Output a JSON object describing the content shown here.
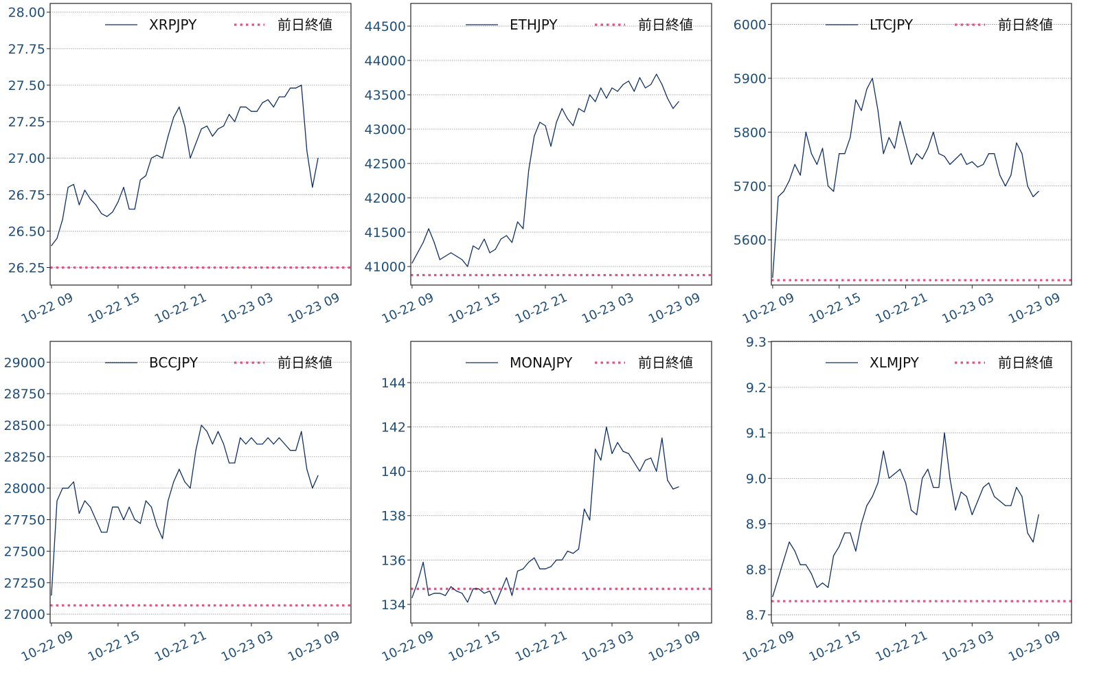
{
  "colors": {
    "series_line": "#0d2f63",
    "previous_close": "#e0557e",
    "grid": "#8a8a8a",
    "tick_label": "#1f4e79"
  },
  "chart_data": [
    {
      "type": "line",
      "legend": {
        "series": "XRPJPY",
        "reference": "前日終値",
        "placement": "top-right"
      },
      "grid": true,
      "xlim": [
        "10-22 08:53",
        "10-23 11:58"
      ],
      "ylim": [
        26.13,
        28.06
      ],
      "xticks": [
        "10-22 09",
        "10-22 15",
        "10-22 21",
        "10-23 03",
        "10-23 09"
      ],
      "yticks": [
        "26.25",
        "26.50",
        "26.75",
        "27.00",
        "27.25",
        "27.50",
        "27.75",
        "28.00"
      ],
      "previous_close": 26.25,
      "x": [
        "10-22 09:00",
        "10-22 09:30",
        "10-22 10:00",
        "10-22 10:30",
        "10-22 11:00",
        "10-22 11:30",
        "10-22 12:00",
        "10-22 12:30",
        "10-22 13:00",
        "10-22 13:30",
        "10-22 14:00",
        "10-22 14:30",
        "10-22 15:00",
        "10-22 15:30",
        "10-22 16:00",
        "10-22 16:30",
        "10-22 17:00",
        "10-22 17:30",
        "10-22 18:00",
        "10-22 18:30",
        "10-22 19:00",
        "10-22 19:30",
        "10-22 20:00",
        "10-22 20:30",
        "10-22 21:00",
        "10-22 21:30",
        "10-22 22:00",
        "10-22 22:30",
        "10-22 23:00",
        "10-22 23:30",
        "10-23 00:00",
        "10-23 00:30",
        "10-23 01:00",
        "10-23 01:30",
        "10-23 02:00",
        "10-23 02:30",
        "10-23 03:00",
        "10-23 03:30",
        "10-23 04:00",
        "10-23 04:30",
        "10-23 05:00",
        "10-23 05:30",
        "10-23 06:00",
        "10-23 06:30",
        "10-23 07:00",
        "10-23 07:30",
        "10-23 08:00",
        "10-23 08:30",
        "10-23 09:00"
      ],
      "values": [
        26.4,
        26.45,
        26.58,
        26.8,
        26.82,
        26.68,
        26.78,
        26.72,
        26.68,
        26.62,
        26.6,
        26.63,
        26.7,
        26.8,
        26.65,
        26.65,
        26.85,
        26.88,
        27.0,
        27.02,
        27.0,
        27.15,
        27.28,
        27.35,
        27.22,
        27.0,
        27.1,
        27.2,
        27.22,
        27.15,
        27.2,
        27.22,
        27.3,
        27.25,
        27.35,
        27.35,
        27.32,
        27.32,
        27.38,
        27.4,
        27.35,
        27.42,
        27.42,
        27.48,
        27.48,
        27.5,
        27.05,
        26.8,
        27.0
      ]
    },
    {
      "type": "line",
      "legend": {
        "series": "ETHJPY",
        "reference": "前日終値",
        "placement": "top-right"
      },
      "grid": true,
      "xlim": [
        "10-22 08:53",
        "10-23 11:58"
      ],
      "ylim": [
        40730,
        44830
      ],
      "xticks": [
        "10-22 09",
        "10-22 15",
        "10-22 21",
        "10-23 03",
        "10-23 09"
      ],
      "yticks": [
        "41000",
        "41500",
        "42000",
        "42500",
        "43000",
        "43500",
        "44000",
        "44500"
      ],
      "previous_close": 40875,
      "x": [
        "10-22 09:00",
        "10-22 09:30",
        "10-22 10:00",
        "10-22 10:30",
        "10-22 11:00",
        "10-22 11:30",
        "10-22 12:00",
        "10-22 12:30",
        "10-22 13:00",
        "10-22 13:30",
        "10-22 14:00",
        "10-22 14:30",
        "10-22 15:00",
        "10-22 15:30",
        "10-22 16:00",
        "10-22 16:30",
        "10-22 17:00",
        "10-22 17:30",
        "10-22 18:00",
        "10-22 18:30",
        "10-22 19:00",
        "10-22 19:30",
        "10-22 20:00",
        "10-22 20:30",
        "10-22 21:00",
        "10-22 21:30",
        "10-22 22:00",
        "10-22 22:30",
        "10-22 23:00",
        "10-22 23:30",
        "10-23 00:00",
        "10-23 00:30",
        "10-23 01:00",
        "10-23 01:30",
        "10-23 02:00",
        "10-23 02:30",
        "10-23 03:00",
        "10-23 03:30",
        "10-23 04:00",
        "10-23 04:30",
        "10-23 05:00",
        "10-23 05:30",
        "10-23 06:00",
        "10-23 06:30",
        "10-23 07:00",
        "10-23 07:30",
        "10-23 08:00",
        "10-23 08:30",
        "10-23 09:00"
      ],
      "values": [
        41050,
        41200,
        41350,
        41550,
        41350,
        41100,
        41150,
        41200,
        41150,
        41100,
        41000,
        41300,
        41250,
        41400,
        41200,
        41250,
        41400,
        41450,
        41350,
        41650,
        41550,
        42400,
        42900,
        43100,
        43050,
        42750,
        43100,
        43300,
        43150,
        43050,
        43300,
        43250,
        43500,
        43400,
        43600,
        43450,
        43600,
        43550,
        43650,
        43700,
        43550,
        43750,
        43600,
        43650,
        43800,
        43650,
        43450,
        43300,
        43400
      ]
    },
    {
      "type": "line",
      "legend": {
        "series": "LTCJPY",
        "reference": "前日終値",
        "placement": "top-right"
      },
      "grid": true,
      "xlim": [
        "10-22 08:53",
        "10-23 11:58"
      ],
      "ylim": [
        5516,
        6039
      ],
      "xticks": [
        "10-22 09",
        "10-22 15",
        "10-22 21",
        "10-23 03",
        "10-23 09"
      ],
      "yticks": [
        "5600",
        "5700",
        "5800",
        "5900",
        "6000"
      ],
      "previous_close": 5525,
      "x": [
        "10-22 09:00",
        "10-22 09:30",
        "10-22 10:00",
        "10-22 10:30",
        "10-22 11:00",
        "10-22 11:30",
        "10-22 12:00",
        "10-22 12:30",
        "10-22 13:00",
        "10-22 13:30",
        "10-22 14:00",
        "10-22 14:30",
        "10-22 15:00",
        "10-22 15:30",
        "10-22 16:00",
        "10-22 16:30",
        "10-22 17:00",
        "10-22 17:30",
        "10-22 18:00",
        "10-22 18:30",
        "10-22 19:00",
        "10-22 19:30",
        "10-22 20:00",
        "10-22 20:30",
        "10-22 21:00",
        "10-22 21:30",
        "10-22 22:00",
        "10-22 22:30",
        "10-22 23:00",
        "10-22 23:30",
        "10-23 00:00",
        "10-23 00:30",
        "10-23 01:00",
        "10-23 01:30",
        "10-23 02:00",
        "10-23 02:30",
        "10-23 03:00",
        "10-23 03:30",
        "10-23 04:00",
        "10-23 04:30",
        "10-23 05:00",
        "10-23 05:30",
        "10-23 06:00",
        "10-23 06:30",
        "10-23 07:00",
        "10-23 07:30",
        "10-23 08:00",
        "10-23 08:30",
        "10-23 09:00"
      ],
      "values": [
        5530,
        5680,
        5690,
        5710,
        5740,
        5720,
        5800,
        5760,
        5740,
        5770,
        5700,
        5690,
        5760,
        5760,
        5790,
        5860,
        5840,
        5880,
        5900,
        5840,
        5760,
        5790,
        5770,
        5820,
        5780,
        5740,
        5760,
        5750,
        5770,
        5800,
        5760,
        5755,
        5740,
        5750,
        5760,
        5740,
        5745,
        5735,
        5740,
        5760,
        5760,
        5720,
        5700,
        5720,
        5780,
        5760,
        5700,
        5680,
        5690
      ]
    },
    {
      "type": "line",
      "legend": {
        "series": "BCCJPY",
        "reference": "前日終値",
        "placement": "top-right"
      },
      "grid": true,
      "xlim": [
        "10-22 08:53",
        "10-23 11:58"
      ],
      "ylim": [
        26930,
        29165
      ],
      "xticks": [
        "10-22 09",
        "10-22 15",
        "10-22 21",
        "10-23 03",
        "10-23 09"
      ],
      "yticks": [
        "27000",
        "27250",
        "27500",
        "27750",
        "28000",
        "28250",
        "28500",
        "28750",
        "29000"
      ],
      "previous_close": 27070,
      "x": [
        "10-22 09:00",
        "10-22 09:30",
        "10-22 10:00",
        "10-22 10:30",
        "10-22 11:00",
        "10-22 11:30",
        "10-22 12:00",
        "10-22 12:30",
        "10-22 13:00",
        "10-22 13:30",
        "10-22 14:00",
        "10-22 14:30",
        "10-22 15:00",
        "10-22 15:30",
        "10-22 16:00",
        "10-22 16:30",
        "10-22 17:00",
        "10-22 17:30",
        "10-22 18:00",
        "10-22 18:30",
        "10-22 19:00",
        "10-22 19:30",
        "10-22 20:00",
        "10-22 20:30",
        "10-22 21:00",
        "10-22 21:30",
        "10-22 22:00",
        "10-22 22:30",
        "10-22 23:00",
        "10-22 23:30",
        "10-23 00:00",
        "10-23 00:30",
        "10-23 01:00",
        "10-23 01:30",
        "10-23 02:00",
        "10-23 02:30",
        "10-23 03:00",
        "10-23 03:30",
        "10-23 04:00",
        "10-23 04:30",
        "10-23 05:00",
        "10-23 05:30",
        "10-23 06:00",
        "10-23 06:30",
        "10-23 07:00",
        "10-23 07:30",
        "10-23 08:00",
        "10-23 08:30",
        "10-23 09:00"
      ],
      "values": [
        27150,
        27900,
        28000,
        28000,
        28050,
        27800,
        27900,
        27850,
        27750,
        27650,
        27650,
        27850,
        27850,
        27750,
        27850,
        27750,
        27720,
        27900,
        27850,
        27700,
        27600,
        27900,
        28050,
        28150,
        28050,
        28000,
        28300,
        28500,
        28450,
        28350,
        28450,
        28350,
        28200,
        28200,
        28400,
        28350,
        28400,
        28350,
        28350,
        28400,
        28350,
        28400,
        28350,
        28300,
        28300,
        28450,
        28150,
        28000,
        28100
      ]
    },
    {
      "type": "line",
      "legend": {
        "series": "MONAJPY",
        "reference": "前日終値",
        "placement": "top-right"
      },
      "grid": true,
      "xlim": [
        "10-22 08:53",
        "10-23 11:58"
      ],
      "ylim": [
        133.16,
        145.86
      ],
      "xticks": [
        "10-22 09",
        "10-22 15",
        "10-22 21",
        "10-23 03",
        "10-23 09"
      ],
      "yticks": [
        "134",
        "136",
        "138",
        "140",
        "142",
        "144"
      ],
      "previous_close": 134.7,
      "x": [
        "10-22 09:00",
        "10-22 09:30",
        "10-22 10:00",
        "10-22 10:30",
        "10-22 11:00",
        "10-22 11:30",
        "10-22 12:00",
        "10-22 12:30",
        "10-22 13:00",
        "10-22 13:30",
        "10-22 14:00",
        "10-22 14:30",
        "10-22 15:00",
        "10-22 15:30",
        "10-22 16:00",
        "10-22 16:30",
        "10-22 17:00",
        "10-22 17:30",
        "10-22 18:00",
        "10-22 18:30",
        "10-22 19:00",
        "10-22 19:30",
        "10-22 20:00",
        "10-22 20:30",
        "10-22 21:00",
        "10-22 21:30",
        "10-22 22:00",
        "10-22 22:30",
        "10-22 23:00",
        "10-22 23:30",
        "10-23 00:00",
        "10-23 00:30",
        "10-23 01:00",
        "10-23 01:30",
        "10-23 02:00",
        "10-23 02:30",
        "10-23 03:00",
        "10-23 03:30",
        "10-23 04:00",
        "10-23 04:30",
        "10-23 05:00",
        "10-23 05:30",
        "10-23 06:00",
        "10-23 06:30",
        "10-23 07:00",
        "10-23 07:30",
        "10-23 08:00",
        "10-23 08:30",
        "10-23 09:00"
      ],
      "values": [
        134.3,
        135.0,
        135.9,
        134.4,
        134.5,
        134.5,
        134.4,
        134.8,
        134.6,
        134.5,
        134.1,
        134.7,
        134.7,
        134.5,
        134.6,
        134.0,
        134.6,
        135.2,
        134.4,
        135.5,
        135.6,
        135.9,
        136.1,
        135.6,
        135.6,
        135.7,
        136.0,
        136.0,
        136.4,
        136.3,
        136.5,
        138.3,
        137.8,
        141.0,
        140.5,
        142.0,
        140.8,
        141.3,
        140.9,
        140.8,
        140.4,
        140.0,
        140.5,
        140.6,
        140.0,
        141.5,
        139.6,
        139.2,
        139.3
      ]
    },
    {
      "type": "line",
      "legend": {
        "series": "XLMJPY",
        "reference": "前日終値",
        "placement": "top-right"
      },
      "grid": true,
      "xlim": [
        "10-22 08:53",
        "10-23 11:58"
      ],
      "ylim": [
        8.682,
        9.301
      ],
      "xticks": [
        "10-22 09",
        "10-22 15",
        "10-22 21",
        "10-23 03",
        "10-23 09"
      ],
      "yticks": [
        "8.7",
        "8.8",
        "8.9",
        "9.0",
        "9.1",
        "9.2",
        "9.3"
      ],
      "previous_close": 8.73,
      "x": [
        "10-22 09:00",
        "10-22 09:30",
        "10-22 10:00",
        "10-22 10:30",
        "10-22 11:00",
        "10-22 11:30",
        "10-22 12:00",
        "10-22 12:30",
        "10-22 13:00",
        "10-22 13:30",
        "10-22 14:00",
        "10-22 14:30",
        "10-22 15:00",
        "10-22 15:30",
        "10-22 16:00",
        "10-22 16:30",
        "10-22 17:00",
        "10-22 17:30",
        "10-22 18:00",
        "10-22 18:30",
        "10-22 19:00",
        "10-22 19:30",
        "10-22 20:00",
        "10-22 20:30",
        "10-22 21:00",
        "10-22 21:30",
        "10-22 22:00",
        "10-22 22:30",
        "10-22 23:00",
        "10-22 23:30",
        "10-23 00:00",
        "10-23 00:30",
        "10-23 01:00",
        "10-23 01:30",
        "10-23 02:00",
        "10-23 02:30",
        "10-23 03:00",
        "10-23 03:30",
        "10-23 04:00",
        "10-23 04:30",
        "10-23 05:00",
        "10-23 05:30",
        "10-23 06:00",
        "10-23 06:30",
        "10-23 07:00",
        "10-23 07:30",
        "10-23 08:00",
        "10-23 08:30",
        "10-23 09:00"
      ],
      "values": [
        8.74,
        8.78,
        8.82,
        8.86,
        8.84,
        8.81,
        8.81,
        8.79,
        8.76,
        8.77,
        8.76,
        8.83,
        8.85,
        8.88,
        8.88,
        8.84,
        8.9,
        8.94,
        8.96,
        8.99,
        9.06,
        9.0,
        9.01,
        9.02,
        8.99,
        8.93,
        8.92,
        9.0,
        9.02,
        8.98,
        8.98,
        9.1,
        9.0,
        8.93,
        8.97,
        8.96,
        8.92,
        8.95,
        8.98,
        8.99,
        8.96,
        8.95,
        8.94,
        8.94,
        8.98,
        8.96,
        8.88,
        8.86,
        8.92
      ]
    }
  ]
}
